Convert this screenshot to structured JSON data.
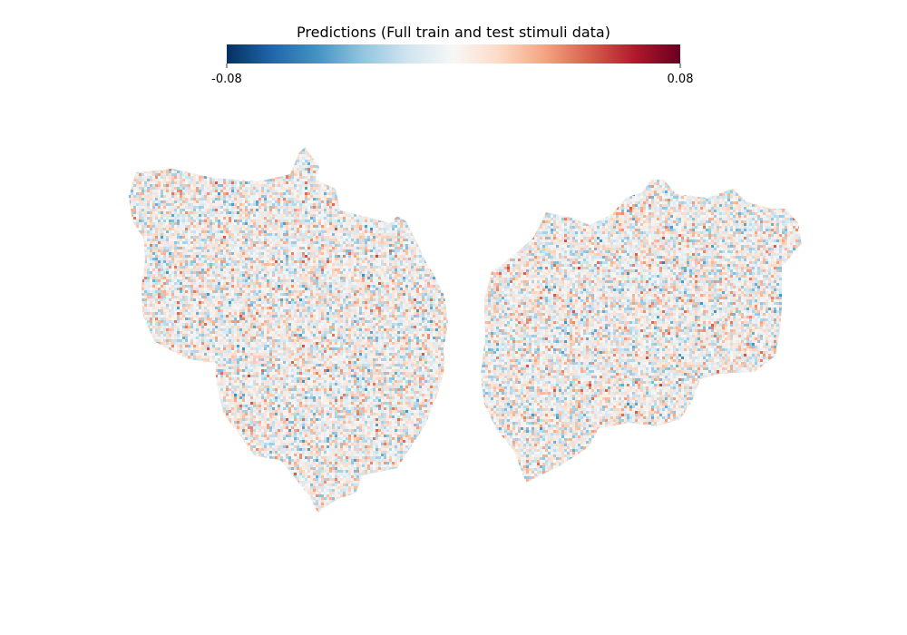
{
  "chart_data": {
    "type": "heatmap",
    "title": "Predictions (Full train and test stimuli data)",
    "colormap": "RdBu_r",
    "colorbar": {
      "min": -0.08,
      "max": 0.08,
      "min_label": "-0.08",
      "max_label": "0.08",
      "placement": "top",
      "colors": [
        "#053061",
        "#2166ac",
        "#4393c3",
        "#92c5de",
        "#d1e5f0",
        "#f7f7f7",
        "#fddbc7",
        "#f4a582",
        "#d6604d",
        "#b2182b",
        "#67001f"
      ]
    },
    "regions": [
      "left hemisphere flatmap",
      "right hemisphere flatmap"
    ],
    "value_range_observed": [
      -0.08,
      0.08
    ],
    "grid": false,
    "axes_visible": false
  }
}
